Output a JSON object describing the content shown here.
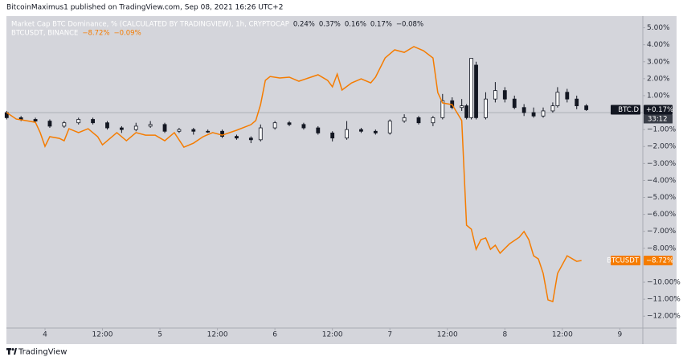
{
  "header": {
    "publisher": "BitcoinMaximus1 published on TradingView.com, Sep 08, 2021 16:26 UTC+2",
    "brand": "TradingView"
  },
  "chart_data": {
    "type": "candlestick",
    "legend": [
      {
        "title": "Market Cap BTC Dominance, % (CALCULATED BY TRADINGVIEW), 1h, CRYPTOCAP",
        "values": [
          "0.24%",
          "0.37%",
          "0.16%",
          "0.17%",
          "−0.08%"
        ],
        "color": "#ffffff"
      },
      {
        "title": "BTCUSDT, BINANCE",
        "values": [
          "−8.72%",
          "−0.09%"
        ],
        "color": "#f57c00"
      }
    ],
    "xlim": [
      -8.05,
      124.8
    ],
    "xticks": [
      {
        "value": 0,
        "label": "4"
      },
      {
        "value": 12,
        "label": "12:00"
      },
      {
        "value": 24,
        "label": "5"
      },
      {
        "value": 36,
        "label": "12:00"
      },
      {
        "value": 48,
        "label": "6"
      },
      {
        "value": 60,
        "label": "12:00"
      },
      {
        "value": 72,
        "label": "7"
      },
      {
        "value": 84,
        "label": "12:00"
      },
      {
        "value": 96,
        "label": "8"
      },
      {
        "value": 108,
        "label": "12:00"
      },
      {
        "value": 120,
        "label": "9"
      }
    ],
    "ylim": [
      -12.7,
      5.69
    ],
    "yticks": [
      {
        "value": 5,
        "label": "5.00%"
      },
      {
        "value": 4,
        "label": "4.00%"
      },
      {
        "value": 3,
        "label": "3.00%"
      },
      {
        "value": 2,
        "label": "2.00%"
      },
      {
        "value": 1,
        "label": "1.00%"
      },
      {
        "value": -1,
        "label": "−1.00%"
      },
      {
        "value": -2,
        "label": "−2.00%"
      },
      {
        "value": -3,
        "label": "−3.00%"
      },
      {
        "value": -4,
        "label": "−4.00%"
      },
      {
        "value": -5,
        "label": "−5.00%"
      },
      {
        "value": -6,
        "label": "−6.00%"
      },
      {
        "value": -7,
        "label": "−7.00%"
      },
      {
        "value": -8,
        "label": "−8.00%"
      },
      {
        "value": -10,
        "label": "−10.00%"
      },
      {
        "value": -11,
        "label": "−11.00%"
      },
      {
        "value": -12,
        "label": "−12.00%"
      }
    ],
    "baseline": 0,
    "series": [
      {
        "type": "candlestick",
        "name": "BTC.D",
        "up_color": "#ffffff",
        "down_color": "#131722",
        "x": [
          -8,
          -5,
          -2,
          1,
          4,
          7,
          10,
          13,
          16,
          19,
          22,
          25,
          28,
          31,
          34,
          37,
          40,
          43,
          45,
          48,
          51,
          54,
          57,
          60,
          63,
          66,
          69,
          72,
          75,
          78,
          81,
          83,
          85,
          87,
          88,
          89,
          90,
          92,
          94,
          96,
          98,
          100,
          102,
          104,
          106,
          107,
          109,
          111,
          113
        ],
        "open": [
          0.0,
          -0.3,
          -0.4,
          -0.5,
          -0.8,
          -0.6,
          -0.4,
          -0.6,
          -0.9,
          -1.0,
          -0.8,
          -0.7,
          -1.1,
          -1.0,
          -1.1,
          -1.1,
          -1.4,
          -1.5,
          -1.6,
          -0.9,
          -0.6,
          -0.7,
          -0.9,
          -1.2,
          -1.5,
          -1.0,
          -1.1,
          -1.2,
          -0.5,
          -0.3,
          -0.6,
          -0.3,
          0.7,
          0.3,
          0.4,
          -0.3,
          2.8,
          -0.3,
          0.8,
          1.3,
          0.8,
          0.3,
          0.0,
          -0.2,
          0.1,
          0.4,
          1.2,
          0.8,
          0.4
        ],
        "high": [
          0.1,
          -0.2,
          -0.3,
          -0.4,
          -0.5,
          -0.3,
          -0.3,
          -0.5,
          -0.8,
          -0.6,
          -0.5,
          -0.6,
          -0.9,
          -0.9,
          -1.0,
          -1.0,
          -1.3,
          -1.4,
          -0.7,
          -0.5,
          -0.5,
          -0.6,
          -0.8,
          -1.1,
          -0.5,
          -0.9,
          -1.0,
          -0.4,
          -0.1,
          -0.2,
          -0.2,
          1.1,
          0.9,
          0.8,
          0.5,
          3.2,
          3.0,
          1.2,
          1.8,
          1.5,
          1.0,
          0.5,
          0.3,
          0.3,
          0.6,
          1.5,
          1.4,
          1.0,
          0.5
        ],
        "low": [
          -0.4,
          -0.5,
          -0.6,
          -0.9,
          -0.9,
          -0.7,
          -0.7,
          -1.0,
          -1.2,
          -1.1,
          -0.9,
          -1.2,
          -1.2,
          -1.3,
          -1.2,
          -1.5,
          -1.6,
          -1.8,
          -1.7,
          -1.0,
          -0.8,
          -1.0,
          -1.3,
          -1.7,
          -1.6,
          -1.2,
          -1.3,
          -1.3,
          -0.6,
          -0.7,
          -0.8,
          -0.4,
          0.2,
          0.1,
          -0.4,
          -0.4,
          -0.4,
          -0.4,
          0.6,
          0.6,
          0.2,
          -0.2,
          -0.3,
          -0.3,
          0.0,
          0.3,
          0.6,
          0.2,
          0.1
        ],
        "close": [
          -0.3,
          -0.4,
          -0.5,
          -0.8,
          -0.6,
          -0.4,
          -0.6,
          -0.9,
          -1.0,
          -0.8,
          -0.7,
          -1.1,
          -1.0,
          -1.1,
          -1.15,
          -1.4,
          -1.5,
          -1.6,
          -0.9,
          -0.6,
          -0.7,
          -0.9,
          -1.2,
          -1.5,
          -1.0,
          -1.1,
          -1.2,
          -0.5,
          -0.3,
          -0.6,
          -0.3,
          0.7,
          0.3,
          0.4,
          -0.3,
          3.2,
          -0.3,
          0.8,
          1.3,
          0.8,
          0.3,
          0.0,
          -0.2,
          0.1,
          0.4,
          1.2,
          0.8,
          0.4,
          0.17
        ]
      },
      {
        "type": "line",
        "name": "BTCUSDT",
        "color": "#f57c00",
        "x": [
          -8,
          -6,
          -4,
          -2,
          -1,
          0,
          1,
          3,
          4,
          5,
          7,
          9,
          11,
          12,
          13,
          15,
          17,
          19,
          21,
          23,
          25,
          27,
          29,
          31,
          33,
          35,
          37,
          40,
          43,
          44,
          45,
          46,
          47,
          49,
          51,
          53,
          55,
          57,
          59,
          60,
          61,
          62,
          64,
          66,
          68,
          69,
          71,
          73,
          75,
          77,
          79,
          81,
          82,
          83,
          85,
          87,
          88,
          89,
          90,
          91,
          92,
          93,
          94,
          95,
          97,
          99,
          100,
          101,
          102,
          103,
          104,
          105,
          106,
          107,
          109,
          111,
          112
        ],
        "values": [
          0.0,
          -0.38,
          -0.47,
          -0.57,
          -1.18,
          -1.99,
          -1.42,
          -1.52,
          -1.66,
          -0.95,
          -1.18,
          -0.95,
          -1.42,
          -1.9,
          -1.66,
          -1.18,
          -1.66,
          -1.18,
          -1.33,
          -1.33,
          -1.66,
          -1.18,
          -2.04,
          -1.8,
          -1.42,
          -1.18,
          -1.33,
          -1.04,
          -0.71,
          -0.47,
          0.47,
          1.9,
          2.13,
          2.04,
          2.09,
          1.85,
          2.04,
          2.23,
          1.9,
          1.52,
          2.27,
          1.33,
          1.75,
          1.99,
          1.75,
          2.09,
          3.22,
          3.7,
          3.55,
          3.89,
          3.65,
          3.22,
          1.18,
          0.57,
          0.47,
          -0.47,
          -6.64,
          -6.87,
          -8.06,
          -7.49,
          -7.39,
          -8.06,
          -7.82,
          -8.29,
          -7.73,
          -7.35,
          -7.01,
          -7.49,
          -8.44,
          -8.63,
          -9.48,
          -11.04,
          -11.14,
          -9.48,
          -8.44,
          -8.77,
          -8.72
        ]
      }
    ],
    "price_labels": [
      {
        "name": "BTC.D",
        "value": 0.17,
        "label": "+0.17%",
        "timer": "33:12",
        "color": "#131722"
      },
      {
        "name": "BTCUSDT",
        "value": -8.72,
        "label": "−8.72%",
        "color": "#f57c00"
      }
    ]
  }
}
